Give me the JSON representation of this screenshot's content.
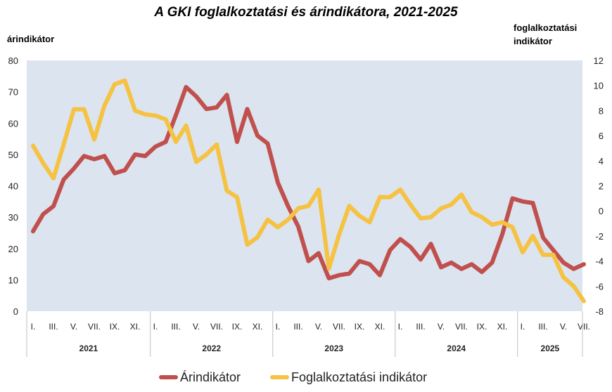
{
  "chart_data": {
    "type": "line",
    "title": "A GKI foglalkoztatási és árindikátora, 2021-2025",
    "ylabel_left": "árindikátor",
    "ylabel_right": [
      "foglalkoztatási",
      "indikátor"
    ],
    "ylim_left": [
      0,
      80
    ],
    "ylim_right": [
      -8,
      12
    ],
    "yticks_left": [
      "0",
      "10",
      "20",
      "30",
      "40",
      "50",
      "60",
      "70",
      "80"
    ],
    "yticks_right": [
      "-8",
      "-6",
      "-4",
      "-2",
      "0",
      "2",
      "4",
      "6",
      "8",
      "10",
      "12"
    ],
    "x_tick_labels": [
      "I.",
      "III.",
      "V.",
      "VII.",
      "IX.",
      "XI.",
      "I.",
      "III.",
      "V.",
      "VII.",
      "IX.",
      "XI.",
      "I.",
      "III.",
      "V.",
      "VII.",
      "IX.",
      "XI.",
      "I.",
      "III.",
      "V.",
      "VII.",
      "IX.",
      "XI.",
      "I.",
      "III.",
      "V.",
      "VII."
    ],
    "years": [
      "2021",
      "2022",
      "2023",
      "2024",
      "2025"
    ],
    "months_per_year": [
      12,
      12,
      12,
      12,
      7
    ],
    "grid": "none",
    "legend_position": "bottom",
    "series": [
      {
        "name": "Árindikátor",
        "axis": "left",
        "color": "#c0504d",
        "values": [
          25.5,
          31,
          33.5,
          42,
          45.5,
          49.5,
          48.5,
          49.5,
          44,
          45,
          50,
          49.5,
          52.5,
          54,
          62.5,
          71.5,
          68.5,
          64.5,
          65,
          69,
          54,
          64.5,
          56,
          53.5,
          41,
          33.5,
          27,
          16,
          18.5,
          10.5,
          11.5,
          12,
          16,
          15,
          11.5,
          19.5,
          23,
          20.5,
          16.5,
          21.5,
          14,
          15.5,
          13.5,
          15,
          12.5,
          15.5,
          24.5,
          36,
          35,
          34.5,
          23.5,
          19.5,
          15.5,
          13.5,
          15
        ]
      },
      {
        "name": "Foglalkoztatási indikátor",
        "axis": "right",
        "color": "#f5c242",
        "values": [
          5.2,
          3.8,
          2.6,
          5.3,
          8.1,
          8.1,
          5.7,
          8.4,
          10.1,
          10.4,
          8,
          7.7,
          7.6,
          7.3,
          5.5,
          6.8,
          3.9,
          4.5,
          5.3,
          1.6,
          1.1,
          -2.7,
          -2.1,
          -0.7,
          -1.3,
          -0.7,
          0.2,
          0.4,
          1.7,
          -4.6,
          -1.9,
          0.4,
          -0.4,
          -0.9,
          1.1,
          1.1,
          1.7,
          0.5,
          -0.6,
          -0.5,
          0.2,
          0.5,
          1.3,
          -0.1,
          -0.5,
          -1.1,
          -0.9,
          -1.3,
          -3.3,
          -2,
          -3.5,
          -3.5,
          -5.3,
          -6,
          -7.2
        ]
      }
    ]
  }
}
